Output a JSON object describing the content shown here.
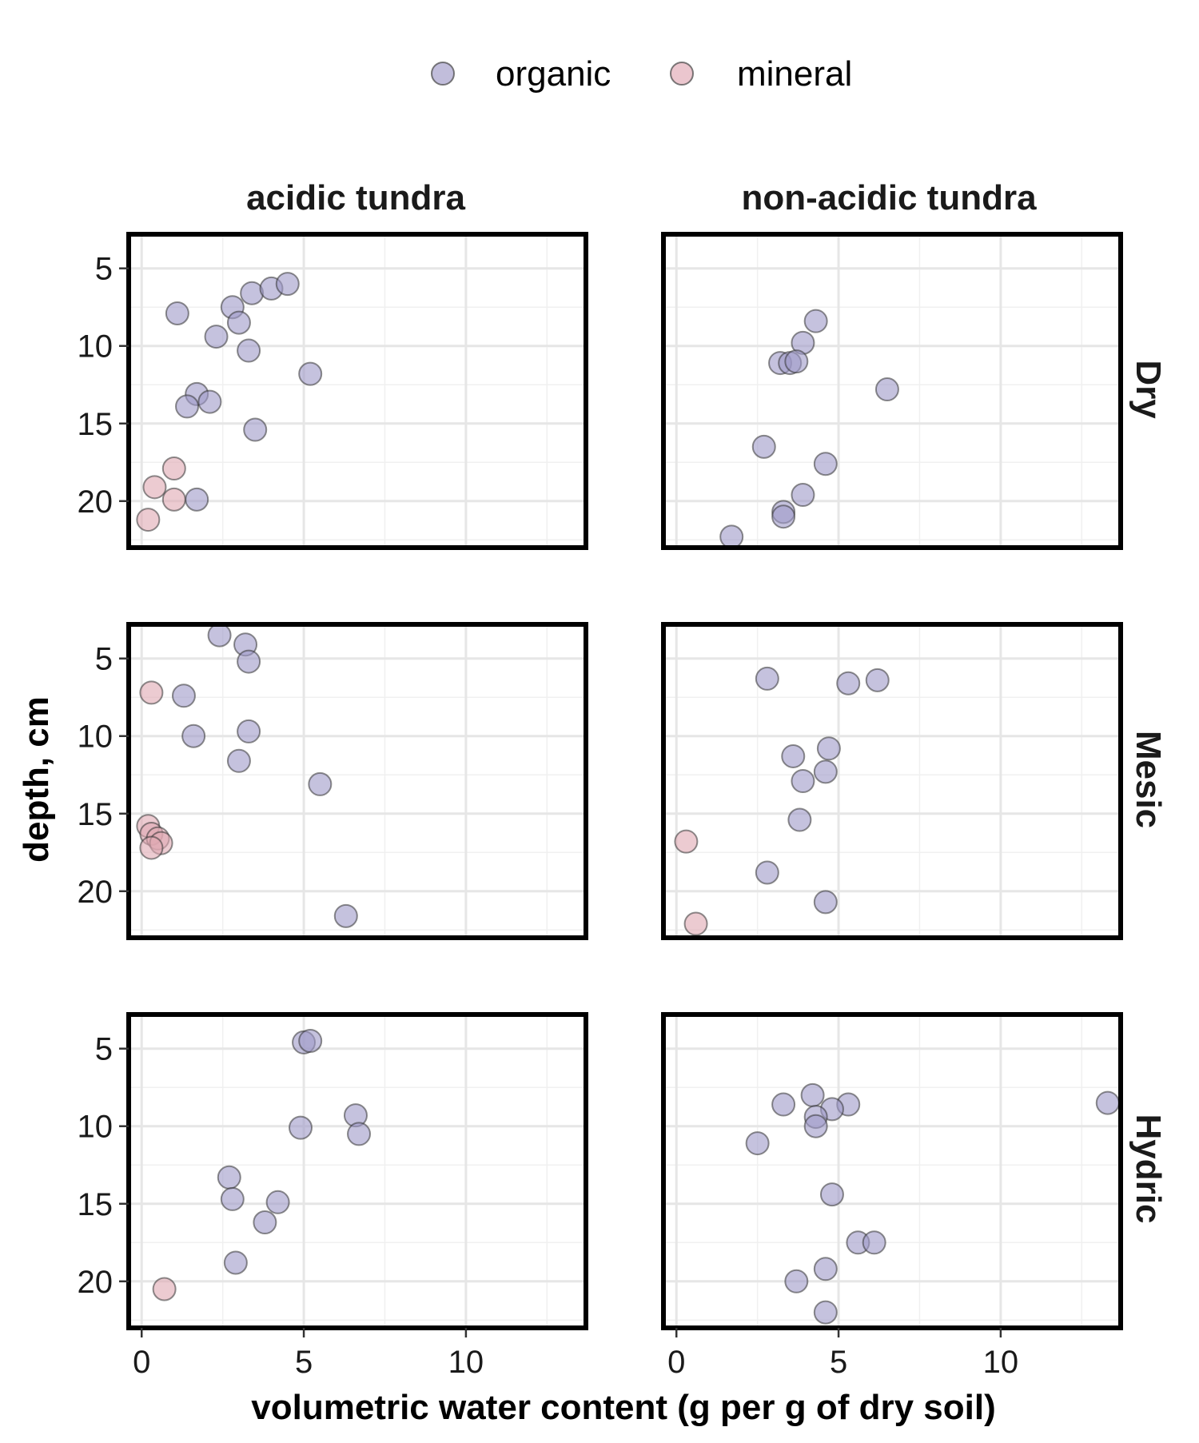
{
  "chart_data": {
    "type": "scatter",
    "xlabel": "volumetric water content (g per g of dry soil)",
    "ylabel": "depth, cm",
    "xlim": [
      -0.4,
      13.7
    ],
    "ylim": [
      23.0,
      2.8
    ],
    "y_reversed": true,
    "xticks": [
      0,
      5,
      10
    ],
    "yticks": [
      5,
      10,
      15,
      20
    ],
    "grid": true,
    "legend_position": "top",
    "legend": [
      {
        "key": "organic",
        "label": "organic",
        "color": "#9f9ac8"
      },
      {
        "key": "mineral",
        "label": "mineral",
        "color": "#e0a8b3"
      }
    ],
    "columns": [
      "acidic tundra",
      "non-acidic tundra"
    ],
    "rows": [
      "Dry",
      "Mesic",
      "Hydric"
    ],
    "panels": [
      {
        "column": "acidic tundra",
        "row": "Dry",
        "points": [
          {
            "x": 1.1,
            "y": 7.9,
            "type": "organic"
          },
          {
            "x": 2.8,
            "y": 7.5,
            "type": "organic"
          },
          {
            "x": 3.4,
            "y": 6.6,
            "type": "organic"
          },
          {
            "x": 4.0,
            "y": 6.3,
            "type": "organic"
          },
          {
            "x": 4.5,
            "y": 6.0,
            "type": "organic"
          },
          {
            "x": 3.0,
            "y": 8.5,
            "type": "organic"
          },
          {
            "x": 2.3,
            "y": 9.4,
            "type": "organic"
          },
          {
            "x": 3.3,
            "y": 10.3,
            "type": "organic"
          },
          {
            "x": 5.2,
            "y": 11.8,
            "type": "organic"
          },
          {
            "x": 1.7,
            "y": 13.1,
            "type": "organic"
          },
          {
            "x": 2.1,
            "y": 13.6,
            "type": "organic"
          },
          {
            "x": 1.4,
            "y": 13.9,
            "type": "organic"
          },
          {
            "x": 3.5,
            "y": 15.4,
            "type": "organic"
          },
          {
            "x": 1.7,
            "y": 19.9,
            "type": "organic"
          },
          {
            "x": 1.0,
            "y": 17.9,
            "type": "mineral"
          },
          {
            "x": 0.4,
            "y": 19.1,
            "type": "mineral"
          },
          {
            "x": 1.0,
            "y": 19.9,
            "type": "mineral"
          },
          {
            "x": 0.2,
            "y": 21.2,
            "type": "mineral"
          }
        ]
      },
      {
        "column": "non-acidic tundra",
        "row": "Dry",
        "points": [
          {
            "x": 4.3,
            "y": 8.4,
            "type": "organic"
          },
          {
            "x": 3.9,
            "y": 9.8,
            "type": "organic"
          },
          {
            "x": 3.2,
            "y": 11.1,
            "type": "organic"
          },
          {
            "x": 3.5,
            "y": 11.1,
            "type": "organic"
          },
          {
            "x": 3.7,
            "y": 11.0,
            "type": "organic"
          },
          {
            "x": 6.5,
            "y": 12.8,
            "type": "organic"
          },
          {
            "x": 2.7,
            "y": 16.5,
            "type": "organic"
          },
          {
            "x": 4.6,
            "y": 17.6,
            "type": "organic"
          },
          {
            "x": 3.9,
            "y": 19.6,
            "type": "organic"
          },
          {
            "x": 3.3,
            "y": 20.7,
            "type": "organic"
          },
          {
            "x": 3.3,
            "y": 21.0,
            "type": "organic"
          },
          {
            "x": 1.7,
            "y": 22.3,
            "type": "organic"
          }
        ]
      },
      {
        "column": "acidic tundra",
        "row": "Mesic",
        "points": [
          {
            "x": 2.4,
            "y": 3.5,
            "type": "organic"
          },
          {
            "x": 3.2,
            "y": 4.1,
            "type": "organic"
          },
          {
            "x": 3.3,
            "y": 5.2,
            "type": "organic"
          },
          {
            "x": 1.3,
            "y": 7.4,
            "type": "organic"
          },
          {
            "x": 1.6,
            "y": 10.0,
            "type": "organic"
          },
          {
            "x": 3.3,
            "y": 9.7,
            "type": "organic"
          },
          {
            "x": 3.0,
            "y": 11.6,
            "type": "organic"
          },
          {
            "x": 5.5,
            "y": 13.1,
            "type": "organic"
          },
          {
            "x": 6.3,
            "y": 21.6,
            "type": "organic"
          },
          {
            "x": 0.3,
            "y": 7.2,
            "type": "mineral"
          },
          {
            "x": 0.2,
            "y": 15.8,
            "type": "mineral"
          },
          {
            "x": 0.3,
            "y": 16.3,
            "type": "mineral"
          },
          {
            "x": 0.5,
            "y": 16.6,
            "type": "mineral"
          },
          {
            "x": 0.6,
            "y": 16.9,
            "type": "mineral"
          },
          {
            "x": 0.3,
            "y": 17.2,
            "type": "mineral"
          }
        ]
      },
      {
        "column": "non-acidic tundra",
        "row": "Mesic",
        "points": [
          {
            "x": 2.8,
            "y": 6.3,
            "type": "organic"
          },
          {
            "x": 5.3,
            "y": 6.6,
            "type": "organic"
          },
          {
            "x": 6.2,
            "y": 6.4,
            "type": "organic"
          },
          {
            "x": 4.7,
            "y": 10.8,
            "type": "organic"
          },
          {
            "x": 3.6,
            "y": 11.3,
            "type": "organic"
          },
          {
            "x": 4.6,
            "y": 12.3,
            "type": "organic"
          },
          {
            "x": 3.9,
            "y": 12.9,
            "type": "organic"
          },
          {
            "x": 3.8,
            "y": 15.4,
            "type": "organic"
          },
          {
            "x": 2.8,
            "y": 18.8,
            "type": "organic"
          },
          {
            "x": 4.6,
            "y": 20.7,
            "type": "organic"
          },
          {
            "x": 0.3,
            "y": 16.8,
            "type": "mineral"
          },
          {
            "x": 0.6,
            "y": 22.1,
            "type": "mineral"
          }
        ]
      },
      {
        "column": "acidic tundra",
        "row": "Hydric",
        "points": [
          {
            "x": 5.0,
            "y": 4.6,
            "type": "organic"
          },
          {
            "x": 5.2,
            "y": 4.5,
            "type": "organic"
          },
          {
            "x": 6.6,
            "y": 9.3,
            "type": "organic"
          },
          {
            "x": 4.9,
            "y": 10.1,
            "type": "organic"
          },
          {
            "x": 6.7,
            "y": 10.5,
            "type": "organic"
          },
          {
            "x": 2.7,
            "y": 13.3,
            "type": "organic"
          },
          {
            "x": 2.8,
            "y": 14.7,
            "type": "organic"
          },
          {
            "x": 4.2,
            "y": 14.9,
            "type": "organic"
          },
          {
            "x": 3.8,
            "y": 16.2,
            "type": "organic"
          },
          {
            "x": 2.9,
            "y": 18.8,
            "type": "organic"
          },
          {
            "x": 0.7,
            "y": 20.5,
            "type": "mineral"
          }
        ]
      },
      {
        "column": "non-acidic tundra",
        "row": "Hydric",
        "points": [
          {
            "x": 4.2,
            "y": 8.0,
            "type": "organic"
          },
          {
            "x": 3.3,
            "y": 8.6,
            "type": "organic"
          },
          {
            "x": 5.3,
            "y": 8.6,
            "type": "organic"
          },
          {
            "x": 4.8,
            "y": 8.9,
            "type": "organic"
          },
          {
            "x": 4.3,
            "y": 9.4,
            "type": "organic"
          },
          {
            "x": 4.3,
            "y": 10.0,
            "type": "organic"
          },
          {
            "x": 13.3,
            "y": 8.5,
            "type": "organic"
          },
          {
            "x": 2.5,
            "y": 11.1,
            "type": "organic"
          },
          {
            "x": 4.8,
            "y": 14.4,
            "type": "organic"
          },
          {
            "x": 5.6,
            "y": 17.5,
            "type": "organic"
          },
          {
            "x": 6.1,
            "y": 17.5,
            "type": "organic"
          },
          {
            "x": 4.6,
            "y": 19.2,
            "type": "organic"
          },
          {
            "x": 3.7,
            "y": 20.0,
            "type": "organic"
          },
          {
            "x": 4.6,
            "y": 22.0,
            "type": "organic"
          }
        ]
      }
    ]
  }
}
